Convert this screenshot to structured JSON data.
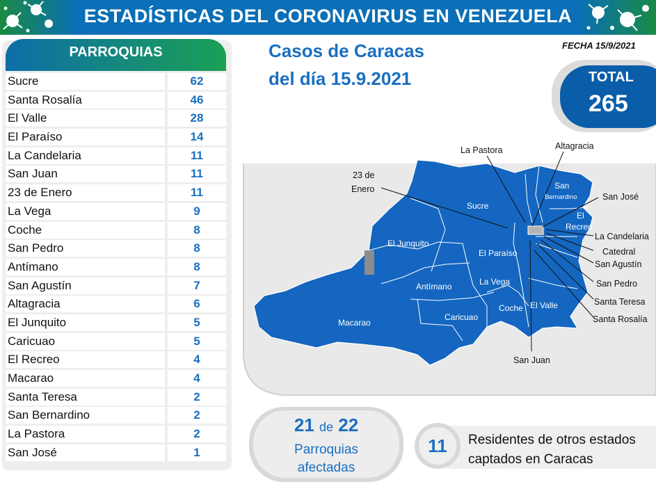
{
  "header": {
    "title": "ESTADÍSTICAS DEL CORONAVIRUS EN VENEZUELA"
  },
  "table": {
    "heading": "PARROQUIAS",
    "rows": [
      {
        "name": "Sucre",
        "value": "62"
      },
      {
        "name": "Santa Rosalía",
        "value": "46"
      },
      {
        "name": "El Valle",
        "value": "28"
      },
      {
        "name": "El Paraíso",
        "value": "14"
      },
      {
        "name": "La Candelaria",
        "value": "11"
      },
      {
        "name": "San Juan",
        "value": "11"
      },
      {
        "name": "23 de Enero",
        "value": "11"
      },
      {
        "name": "La Vega",
        "value": "9"
      },
      {
        "name": "Coche",
        "value": "8"
      },
      {
        "name": "San Pedro",
        "value": "8"
      },
      {
        "name": "Antímano",
        "value": "8"
      },
      {
        "name": "San Agustín",
        "value": "7"
      },
      {
        "name": "Altagracia",
        "value": "6"
      },
      {
        "name": "El Junquito",
        "value": "5"
      },
      {
        "name": "Caricuao",
        "value": "5"
      },
      {
        "name": "El Recreo",
        "value": "4"
      },
      {
        "name": "Macarao",
        "value": "4"
      },
      {
        "name": "Santa Teresa",
        "value": "2"
      },
      {
        "name": "San Bernardino",
        "value": "2"
      },
      {
        "name": "La Pastora",
        "value": "2"
      },
      {
        "name": "San José",
        "value": "1"
      }
    ]
  },
  "cases": {
    "line1": "Casos de Caracas",
    "line2": "del día 15.9.2021"
  },
  "date": "FECHA 15/9/2021",
  "total": {
    "label": "TOTAL",
    "value": "265"
  },
  "map": {
    "fill_color": "#1466c0",
    "labels": {
      "la_pastora": "La Pastora",
      "altagracia": "Altagracia",
      "enero_1": "23 de",
      "enero_2": "Enero",
      "san_bernardino_1": "San",
      "san_bernardino_2": "Bernardino",
      "san_jose": "San José",
      "sucre": "Sucre",
      "el_recreo_1": "El",
      "el_recreo_2": "Recreo",
      "la_candelaria": "La Candelaria",
      "catedral": "Catedral",
      "san_agustin": "San Agustín",
      "el_junquito": "El Junquito",
      "el_paraiso": "El Paraíso",
      "san_pedro": "San Pedro",
      "antimano": "Antímano",
      "la_vega": "La Vega",
      "santa_teresa": "Santa Teresa",
      "el_valle": "El Valle",
      "coche": "Coche",
      "santa_rosalia": "Santa Rosalía",
      "caricuao": "Caricuao",
      "macarao": "Macarao",
      "san_juan": "San Juan"
    }
  },
  "affected": {
    "count": "21",
    "of": "de",
    "total": "22",
    "line1": "Parroquias",
    "line2": "afectadas"
  },
  "residents": {
    "count": "11",
    "line1": "Residentes de otros estados",
    "line2": "captados en Caracas"
  },
  "icons": [
    "virus-icon"
  ]
}
